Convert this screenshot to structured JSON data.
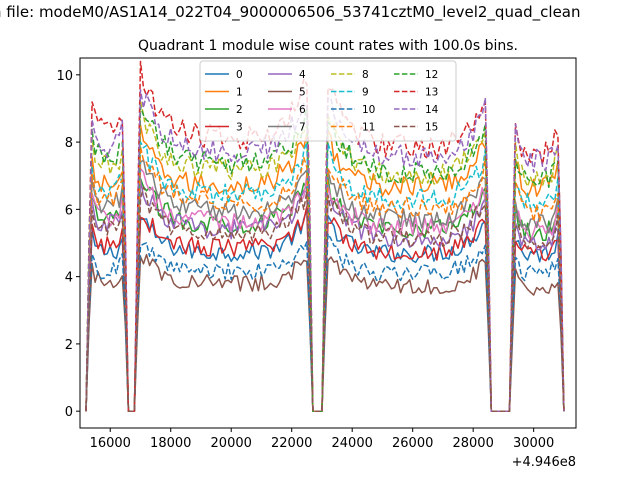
{
  "figure": {
    "suptitle": "n file: modeM0/AS1A14_022T04_9000006506_53741cztM0_level2_quad_clean",
    "title": "Quadrant 1 module wise count rates with 100.0s bins.",
    "x_offset_label": "+4.946e8"
  },
  "chart_data": {
    "type": "line",
    "title": "Quadrant 1 module wise count rates with 100.0s bins.",
    "xlabel": "",
    "ylabel": "",
    "x_offset": 494600000,
    "xlim": [
      15000,
      31400
    ],
    "ylim": [
      -0.5,
      10.5
    ],
    "xticks": [
      16000,
      18000,
      20000,
      22000,
      24000,
      26000,
      28000,
      30000
    ],
    "yticks": [
      0,
      2,
      4,
      6,
      8,
      10
    ],
    "grid": false,
    "legend": {
      "placement": "top-center",
      "columns": 4
    },
    "x_start": 15200,
    "x_end": 31000,
    "bin_seconds": 100,
    "gaps": [
      [
        16600,
        16800
      ],
      [
        22700,
        23000
      ],
      [
        28600,
        29200
      ]
    ],
    "series": [
      {
        "name": "0",
        "color": "#1f77b4",
        "dash": false,
        "level_range": [
          5.0,
          4.9
        ]
      },
      {
        "name": "1",
        "color": "#ff7f0e",
        "dash": false,
        "level_range": [
          7.1,
          7.0
        ]
      },
      {
        "name": "2",
        "color": "#2ca02c",
        "dash": false,
        "level_range": [
          6.0,
          5.6
        ]
      },
      {
        "name": "3",
        "color": "#d62728",
        "dash": false,
        "level_range": [
          5.2,
          4.9
        ]
      },
      {
        "name": "4",
        "color": "#9467bd",
        "dash": false,
        "level_range": [
          5.9,
          5.2
        ]
      },
      {
        "name": "5",
        "color": "#8c564b",
        "dash": false,
        "level_range": [
          4.1,
          3.8
        ]
      },
      {
        "name": "6",
        "color": "#e377c2",
        "dash": false,
        "level_range": [
          6.1,
          5.6
        ]
      },
      {
        "name": "7",
        "color": "#7f7f7f",
        "dash": false,
        "level_range": [
          6.5,
          5.8
        ]
      },
      {
        "name": "8",
        "color": "#bcbd22",
        "dash": true,
        "level_range": [
          7.7,
          7.3
        ]
      },
      {
        "name": "9",
        "color": "#17becf",
        "dash": true,
        "level_range": [
          6.9,
          6.5
        ]
      },
      {
        "name": "10",
        "color": "#1f77b4",
        "dash": true,
        "level_range": [
          4.4,
          4.3
        ]
      },
      {
        "name": "11",
        "color": "#ff7f0e",
        "dash": true,
        "level_range": [
          6.7,
          6.2
        ]
      },
      {
        "name": "12",
        "color": "#2ca02c",
        "dash": true,
        "level_range": [
          8.0,
          7.2
        ]
      },
      {
        "name": "13",
        "color": "#d62728",
        "dash": true,
        "level_range": [
          8.8,
          8.0
        ]
      },
      {
        "name": "14",
        "color": "#9467bd",
        "dash": true,
        "level_range": [
          8.3,
          7.8
        ]
      },
      {
        "name": "15",
        "color": "#8c564b",
        "dash": true,
        "level_range": [
          5.7,
          5.3
        ]
      }
    ]
  }
}
